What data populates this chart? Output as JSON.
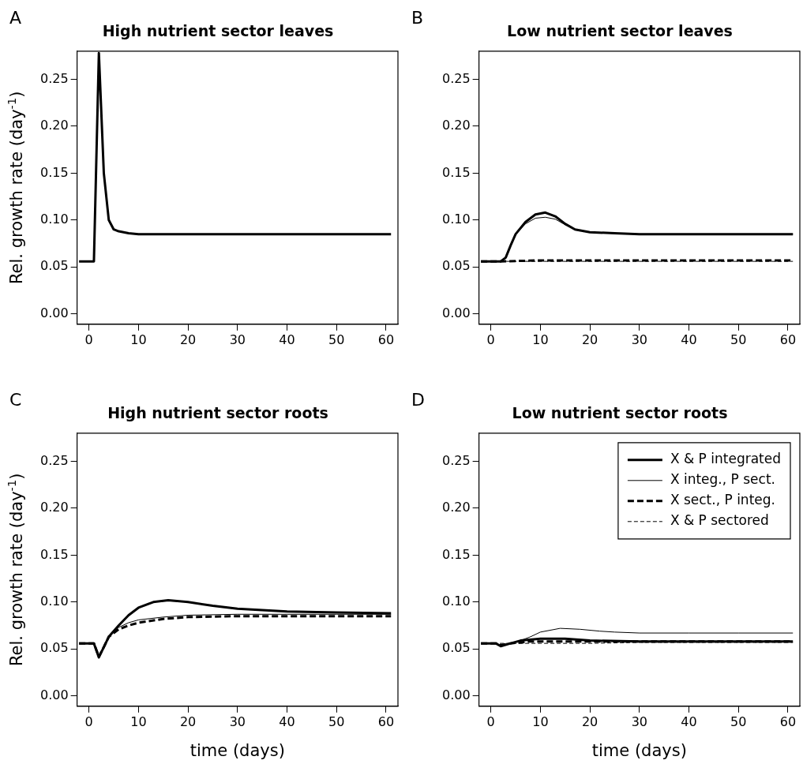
{
  "chart_data": [
    {
      "type": "line",
      "title": "High nutrient sector leaves",
      "ylabel": "Rel. growth rate (day$^{-1}$)",
      "annotations": [
        "A"
      ],
      "xlim": [
        -2.4,
        62.4
      ],
      "ylim": [
        -0.011,
        0.28
      ],
      "xticks": [
        0,
        10,
        20,
        30,
        40,
        50,
        60
      ],
      "yticks": [
        {
          "value": 0,
          "label": "0.00"
        },
        {
          "value": 0.05,
          "label": "0.05"
        },
        {
          "value": 0.1,
          "label": "0.10"
        },
        {
          "value": 0.15,
          "label": "0.15"
        },
        {
          "value": 0.2,
          "label": "0.20"
        },
        {
          "value": 0.25,
          "label": "0.25"
        }
      ],
      "grid": false,
      "legend": false,
      "marker": "none",
      "series": [
        {
          "color": "#000000",
          "line_style": "solid",
          "x": [
            -2,
            1,
            2,
            3,
            4,
            5,
            6,
            8,
            10,
            20,
            30,
            40,
            50,
            61
          ],
          "values": [
            0.056,
            0.056,
            0.278,
            0.15,
            0.1,
            0.09,
            0.088,
            0.086,
            0.085,
            0.085,
            0.085,
            0.085,
            0.085,
            0.085
          ]
        }
      ]
    },
    {
      "type": "line",
      "title": "Low nutrient sector leaves",
      "annotations": [
        "B"
      ],
      "xlim": [
        -2.4,
        62.4
      ],
      "ylim": [
        -0.011,
        0.28
      ],
      "xticks": [
        0,
        10,
        20,
        30,
        40,
        50,
        60
      ],
      "yticks": [
        {
          "value": 0,
          "label": "0.00"
        },
        {
          "value": 0.05,
          "label": "0.05"
        },
        {
          "value": 0.1,
          "label": "0.10"
        },
        {
          "value": 0.15,
          "label": "0.15"
        },
        {
          "value": 0.2,
          "label": "0.20"
        },
        {
          "value": 0.25,
          "label": "0.25"
        }
      ],
      "grid": false,
      "legend": false,
      "marker": "none",
      "series": [
        {
          "color": "#000000",
          "line_style": "solid",
          "x": [
            -2,
            2,
            3,
            4,
            5,
            7,
            9,
            11,
            13,
            15,
            17,
            20,
            25,
            30,
            40,
            50,
            61
          ],
          "values": [
            0.056,
            0.056,
            0.06,
            0.073,
            0.085,
            0.098,
            0.106,
            0.108,
            0.104,
            0.096,
            0.09,
            0.087,
            0.086,
            0.085,
            0.085,
            0.085,
            0.085
          ]
        },
        {
          "color": "#000000",
          "line_style": "solid",
          "x": [
            -2,
            2,
            3,
            4,
            5,
            7,
            9,
            11,
            13,
            15,
            17,
            20,
            25,
            30,
            40,
            50,
            61
          ],
          "values": [
            0.056,
            0.056,
            0.06,
            0.073,
            0.085,
            0.096,
            0.102,
            0.103,
            0.101,
            0.095,
            0.09,
            0.087,
            0.086,
            0.085,
            0.085,
            0.085,
            0.085
          ]
        },
        {
          "color": "#000000",
          "line_style": "dashed",
          "x": [
            -2,
            2,
            10,
            20,
            30,
            40,
            50,
            61
          ],
          "values": [
            0.056,
            0.056,
            0.057,
            0.057,
            0.057,
            0.057,
            0.057,
            0.057
          ]
        },
        {
          "color": "#000000",
          "line_style": "dashed",
          "x": [
            -2,
            2,
            10,
            20,
            30,
            40,
            50,
            61
          ],
          "values": [
            0.056,
            0.056,
            0.056,
            0.056,
            0.056,
            0.056,
            0.056,
            0.056
          ]
        }
      ]
    },
    {
      "type": "line",
      "title": "High nutrient sector roots",
      "ylabel": "Rel. growth rate (day$^{-1}$)",
      "xlabel": "time (days)",
      "annotations": [
        "C"
      ],
      "xlim": [
        -2.4,
        62.4
      ],
      "ylim": [
        -0.011,
        0.28
      ],
      "xticks": [
        0,
        10,
        20,
        30,
        40,
        50,
        60
      ],
      "yticks": [
        {
          "value": 0,
          "label": "0.00"
        },
        {
          "value": 0.05,
          "label": "0.05"
        },
        {
          "value": 0.1,
          "label": "0.10"
        },
        {
          "value": 0.15,
          "label": "0.15"
        },
        {
          "value": 0.2,
          "label": "0.20"
        },
        {
          "value": 0.25,
          "label": "0.25"
        }
      ],
      "grid": false,
      "legend": false,
      "marker": "none",
      "series": [
        {
          "color": "#000000",
          "line_style": "solid",
          "x": [
            -2,
            1,
            2,
            3,
            4,
            6,
            8,
            10,
            13,
            16,
            20,
            25,
            30,
            40,
            50,
            61
          ],
          "values": [
            0.056,
            0.056,
            0.041,
            0.052,
            0.063,
            0.075,
            0.086,
            0.094,
            0.1,
            0.102,
            0.1,
            0.096,
            0.093,
            0.09,
            0.089,
            0.088
          ]
        },
        {
          "color": "#000000",
          "line_style": "solid",
          "x": [
            -2,
            1,
            2,
            3,
            4,
            6,
            8,
            10,
            15,
            20,
            30,
            40,
            50,
            61
          ],
          "values": [
            0.056,
            0.056,
            0.041,
            0.052,
            0.064,
            0.073,
            0.078,
            0.081,
            0.084,
            0.086,
            0.087,
            0.087,
            0.087,
            0.087
          ]
        },
        {
          "color": "#000000",
          "line_style": "dashed",
          "x": [
            -2,
            1,
            2,
            3,
            4,
            6,
            8,
            10,
            15,
            20,
            30,
            40,
            50,
            61
          ],
          "values": [
            0.056,
            0.056,
            0.042,
            0.052,
            0.063,
            0.071,
            0.075,
            0.078,
            0.082,
            0.084,
            0.085,
            0.085,
            0.085,
            0.085
          ]
        }
      ]
    },
    {
      "type": "line",
      "title": "Low nutrient sector roots",
      "xlabel": "time (days)",
      "annotations": [
        "D"
      ],
      "xlim": [
        -2.4,
        62.4
      ],
      "ylim": [
        -0.011,
        0.28
      ],
      "xticks": [
        0,
        10,
        20,
        30,
        40,
        50,
        60
      ],
      "yticks": [
        {
          "value": 0,
          "label": "0.00"
        },
        {
          "value": 0.05,
          "label": "0.05"
        },
        {
          "value": 0.1,
          "label": "0.10"
        },
        {
          "value": 0.15,
          "label": "0.15"
        },
        {
          "value": 0.2,
          "label": "0.20"
        },
        {
          "value": 0.25,
          "label": "0.25"
        }
      ],
      "grid": false,
      "legend": "top right",
      "marker": "none",
      "series": [
        {
          "name": "X & P integrated",
          "color": "#000000",
          "line_style": "solid",
          "x": [
            -2,
            1,
            2,
            4,
            6,
            10,
            15,
            20,
            30,
            40,
            50,
            61
          ],
          "values": [
            0.056,
            0.056,
            0.053,
            0.056,
            0.059,
            0.061,
            0.061,
            0.059,
            0.058,
            0.058,
            0.058,
            0.058
          ]
        },
        {
          "name": "X integ., P sect.",
          "color": "#000000",
          "line_style": "solid",
          "x": [
            -2,
            1,
            2,
            4,
            6,
            8,
            10,
            14,
            18,
            22,
            25,
            30,
            40,
            50,
            61
          ],
          "values": [
            0.056,
            0.056,
            0.053,
            0.056,
            0.059,
            0.063,
            0.068,
            0.072,
            0.071,
            0.069,
            0.068,
            0.067,
            0.067,
            0.067,
            0.067
          ]
        },
        {
          "name": "X sect., P integ.",
          "color": "#000000",
          "line_style": "dashed",
          "x": [
            -2,
            1,
            2,
            4,
            8,
            15,
            20,
            30,
            40,
            50,
            61
          ],
          "values": [
            0.056,
            0.056,
            0.054,
            0.056,
            0.058,
            0.058,
            0.058,
            0.058,
            0.058,
            0.058,
            0.058
          ]
        },
        {
          "name": "X & P sectored",
          "color": "#000000",
          "line_style": "dashed",
          "x": [
            -2,
            10,
            20,
            30,
            40,
            50,
            61
          ],
          "values": [
            0.056,
            0.056,
            0.056,
            0.057,
            0.057,
            0.057,
            0.057
          ]
        }
      ]
    }
  ]
}
